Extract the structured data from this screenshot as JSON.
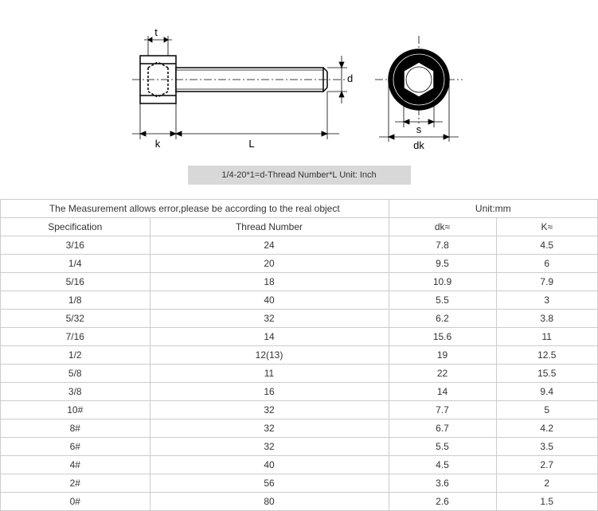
{
  "diagram": {
    "labels": {
      "t": "t",
      "d": "d",
      "k": "k",
      "L": "L",
      "s": "s",
      "dk": "dk"
    },
    "stroke": "#000000",
    "fill_none": "none",
    "head_fill": "#ffffff"
  },
  "formula": "1/4-20*1=d-Thread Number*L   Unit: Inch",
  "table": {
    "note": "The Measurement allows error,please be according to the real object",
    "unit_label": "Unit:mm",
    "columns": [
      "Specification",
      "Thread Number",
      "dk≈",
      "K≈"
    ],
    "rows": [
      [
        "3/16",
        "24",
        "7.8",
        "4.5"
      ],
      [
        "1/4",
        "20",
        "9.5",
        "6"
      ],
      [
        "5/16",
        "18",
        "10.9",
        "7.9"
      ],
      [
        "1/8",
        "40",
        "5.5",
        "3"
      ],
      [
        "5/32",
        "32",
        "6.2",
        "3.8"
      ],
      [
        "7/16",
        "14",
        "15.6",
        "11"
      ],
      [
        "1/2",
        "12(13)",
        "19",
        "12.5"
      ],
      [
        "5/8",
        "11",
        "22",
        "15.5"
      ],
      [
        "3/8",
        "16",
        "14",
        "9.4"
      ],
      [
        "10#",
        "32",
        "7.7",
        "5"
      ],
      [
        "8#",
        "32",
        "6.7",
        "4.2"
      ],
      [
        "6#",
        "32",
        "5.5",
        "3.5"
      ],
      [
        "4#",
        "40",
        "4.5",
        "2.7"
      ],
      [
        "2#",
        "56",
        "3.6",
        "2"
      ],
      [
        "0#",
        "80",
        "2.6",
        "1.5"
      ]
    ],
    "col_widths": [
      "25%",
      "40%",
      "18%",
      "17%"
    ]
  }
}
